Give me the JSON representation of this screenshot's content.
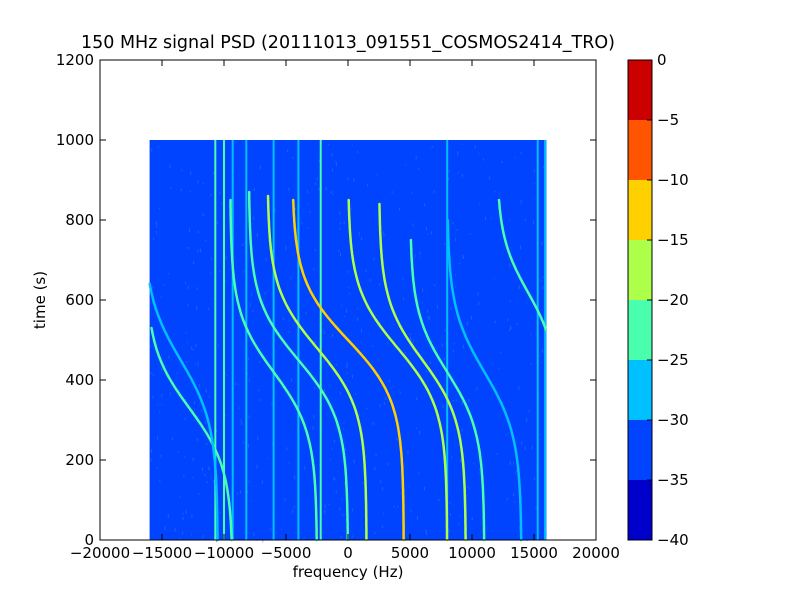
{
  "chart_data": {
    "type": "heatmap",
    "title": "150 MHz signal PSD (20111013_091551_COSMOS2414_TRO)",
    "xlabel": "frequency (Hz)",
    "ylabel": "time (s)",
    "xlim": [
      -20000,
      20000
    ],
    "ylim": [
      0,
      1200
    ],
    "x_ticks": [
      -20000,
      -15000,
      -10000,
      -5000,
      0,
      5000,
      10000,
      15000,
      20000
    ],
    "x_tick_labels": [
      "−20000",
      "−15000",
      "−10000",
      "−5000",
      "0",
      "5000",
      "10000",
      "15000",
      "20000"
    ],
    "y_ticks": [
      0,
      200,
      400,
      600,
      800,
      1000,
      1200
    ],
    "y_tick_labels": [
      "0",
      "200",
      "400",
      "600",
      "800",
      "1000",
      "1200"
    ],
    "data_extent": {
      "x": [
        -16000,
        16000
      ],
      "y": [
        0,
        1000
      ]
    },
    "colorbar": {
      "range": [
        -40,
        0
      ],
      "levels": [
        -40,
        -35,
        -30,
        -25,
        -20,
        -15,
        -10,
        -5,
        0
      ],
      "tick_labels": [
        "−40",
        "−35",
        "−30",
        "−25",
        "−20",
        "−15",
        "−10",
        "−5",
        "0"
      ],
      "colors": [
        "#0000cd",
        "#0044ff",
        "#00c0ff",
        "#49ffad",
        "#adff49",
        "#ffd000",
        "#ff5500",
        "#cd0000"
      ]
    },
    "background_level": "-35 to -30",
    "vertical_lines_hz": [
      {
        "x": -10700,
        "level": "-25 to -20"
      },
      {
        "x": -10000,
        "level": "-25 to -20"
      },
      {
        "x": -9300,
        "level": "-30 to -25"
      },
      {
        "x": -8200,
        "level": "-30 to -25"
      },
      {
        "x": -6000,
        "level": "-30 to -25"
      },
      {
        "x": -4000,
        "level": "-30 to -25"
      },
      {
        "x": -2200,
        "level": "-25 to -20"
      },
      {
        "x": 8000,
        "level": "-30 to -25"
      },
      {
        "x": 15300,
        "level": "-30 to -25"
      },
      {
        "x": 15900,
        "level": "-30 to -25"
      }
    ],
    "doppler_curves": [
      {
        "x_mid": -12800,
        "t_mid": 330,
        "span_hz": 7000,
        "tau_s": 150,
        "t_range": [
          0,
          530
        ],
        "level": "-25 to -20"
      },
      {
        "x_mid": -13500,
        "t_mid": 450,
        "span_hz": 6000,
        "tau_s": 160,
        "t_range": [
          0,
          700
        ],
        "level": "-30 to -25"
      },
      {
        "x_mid": -6000,
        "t_mid": 420,
        "span_hz": 7000,
        "tau_s": 150,
        "t_range": [
          0,
          850
        ],
        "level": "-25 to -20"
      },
      {
        "x_mid": -4000,
        "t_mid": 450,
        "span_hz": 8000,
        "tau_s": 150,
        "t_range": [
          0,
          870
        ],
        "level": "-25 to -20"
      },
      {
        "x_mid": -2500,
        "t_mid": 480,
        "span_hz": 8000,
        "tau_s": 150,
        "t_range": [
          0,
          860
        ],
        "level": "-20 to -15"
      },
      {
        "x_mid": 0,
        "t_mid": 500,
        "span_hz": 9000,
        "tau_s": 150,
        "t_range": [
          0,
          850
        ],
        "level": "-15 to -10"
      },
      {
        "x_mid": 4000,
        "t_mid": 480,
        "span_hz": 8000,
        "tau_s": 150,
        "t_range": [
          0,
          850
        ],
        "level": "-20 to -15"
      },
      {
        "x_mid": 6000,
        "t_mid": 450,
        "span_hz": 7000,
        "tau_s": 150,
        "t_range": [
          0,
          840
        ],
        "level": "-20 to -15"
      },
      {
        "x_mid": 8000,
        "t_mid": 420,
        "span_hz": 6000,
        "tau_s": 150,
        "t_range": [
          0,
          750
        ],
        "level": "-25 to -20"
      },
      {
        "x_mid": 11000,
        "t_mid": 420,
        "span_hz": 6000,
        "tau_s": 160,
        "t_range": [
          0,
          800
        ],
        "level": "-30 to -25"
      },
      {
        "x_mid": 14500,
        "t_mid": 620,
        "span_hz": 5000,
        "tau_s": 140,
        "t_range": [
          0,
          850
        ],
        "level": "-25 to -20"
      }
    ]
  }
}
